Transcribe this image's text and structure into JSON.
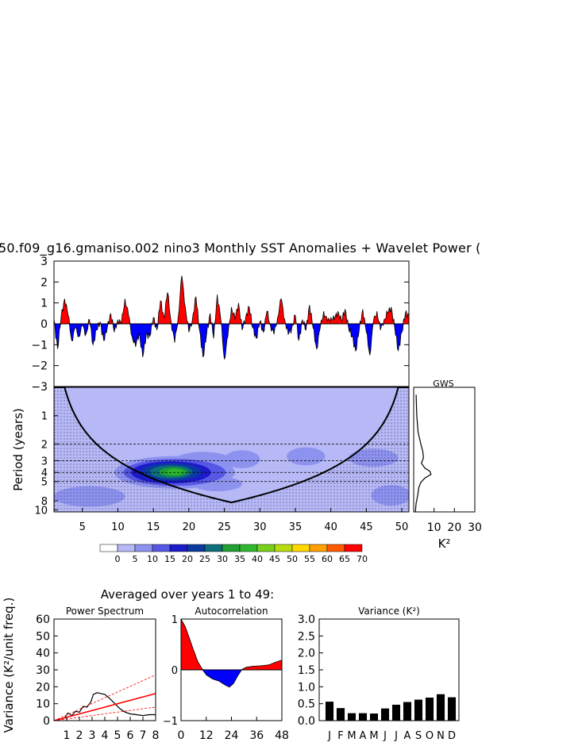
{
  "main_title": "50.f09_g16.gmaniso.002 nino3 Monthly SST Anomalies + Wavelet Power (",
  "colorbar": {
    "labels": [
      "0",
      "5",
      "10",
      "15",
      "20",
      "25",
      "30",
      "35",
      "40",
      "45",
      "50",
      "55",
      "60",
      "65",
      "70"
    ],
    "colors": [
      "#ffffff",
      "#b6b9f5",
      "#8e92ef",
      "#5757e6",
      "#1b1bc9",
      "#0b3aa0",
      "#0e6e7a",
      "#20a033",
      "#2fb82f",
      "#79cf1c",
      "#b7dc0f",
      "#ffd800",
      "#ff9f00",
      "#ff5a00",
      "#ff0000"
    ]
  },
  "gws": {
    "title": "GWS",
    "xlabel": "K²",
    "xticks": [
      "10",
      "20",
      "30"
    ]
  },
  "averaged_title": "Averaged over years 1 to 49:",
  "chart_data": [
    {
      "type": "area",
      "name": "sst-anomalies",
      "title": "",
      "ylim": [
        -3,
        3
      ],
      "yticks": [
        "3",
        "2",
        "1",
        "0",
        "−1",
        "−2",
        "−3"
      ],
      "x_range": [
        1,
        51
      ],
      "positive_color": "#ff0000",
      "negative_color": "#0000ff",
      "anomaly_points": [
        [
          1,
          0.2
        ],
        [
          1.5,
          -1.2
        ],
        [
          2,
          0.3
        ],
        [
          2.5,
          1.2
        ],
        [
          3,
          0.4
        ],
        [
          3.5,
          -0.8
        ],
        [
          4,
          -0.2
        ],
        [
          4.5,
          -0.6
        ],
        [
          5,
          -0.1
        ],
        [
          5.5,
          -0.5
        ],
        [
          6,
          0.2
        ],
        [
          6.5,
          -1.0
        ],
        [
          7,
          -0.3
        ],
        [
          7.5,
          0.1
        ],
        [
          8,
          -0.8
        ],
        [
          8.5,
          -0.2
        ],
        [
          9,
          0.5
        ],
        [
          9.5,
          -0.4
        ],
        [
          10,
          0.2
        ],
        [
          10.5,
          0.0
        ],
        [
          11,
          1.2
        ],
        [
          11.5,
          0.4
        ],
        [
          12,
          -0.6
        ],
        [
          12.5,
          -1.1
        ],
        [
          13,
          -0.4
        ],
        [
          13.5,
          -1.6
        ],
        [
          14,
          -0.5
        ],
        [
          14.5,
          -0.6
        ],
        [
          15,
          0.3
        ],
        [
          15.5,
          -0.3
        ],
        [
          16,
          1.1
        ],
        [
          16.5,
          0.3
        ],
        [
          17,
          1.5
        ],
        [
          17.5,
          0.1
        ],
        [
          18,
          -0.9
        ],
        [
          18.5,
          0.3
        ],
        [
          19,
          2.3
        ],
        [
          19.5,
          0.8
        ],
        [
          20,
          -0.4
        ],
        [
          20.5,
          0.2
        ],
        [
          21,
          1.3
        ],
        [
          21.5,
          -0.3
        ],
        [
          22,
          -1.6
        ],
        [
          22.5,
          -0.5
        ],
        [
          23,
          0.5
        ],
        [
          23.5,
          -0.7
        ],
        [
          24,
          1.4
        ],
        [
          24.5,
          0.2
        ],
        [
          25,
          -1.7
        ],
        [
          25.5,
          -0.6
        ],
        [
          26,
          0.8
        ],
        [
          26.5,
          0.2
        ],
        [
          27,
          1.0
        ],
        [
          27.5,
          -0.3
        ],
        [
          28,
          0.3
        ],
        [
          28.5,
          0.8
        ],
        [
          29,
          -0.2
        ],
        [
          29.5,
          -0.7
        ],
        [
          30,
          0.1
        ],
        [
          30.5,
          -0.4
        ],
        [
          31,
          0.6
        ],
        [
          31.5,
          -0.1
        ],
        [
          32,
          -0.5
        ],
        [
          32.5,
          0.3
        ],
        [
          33,
          1.2
        ],
        [
          33.5,
          0.2
        ],
        [
          34,
          -0.5
        ],
        [
          34.5,
          -0.2
        ],
        [
          35,
          0.4
        ],
        [
          35.5,
          -0.8
        ],
        [
          36,
          0.2
        ],
        [
          36.5,
          -0.3
        ],
        [
          37,
          0.9
        ],
        [
          37.5,
          -0.2
        ],
        [
          38,
          -1.2
        ],
        [
          38.5,
          -0.2
        ],
        [
          39,
          0.6
        ],
        [
          39.5,
          0.1
        ],
        [
          40,
          0.3
        ],
        [
          40.5,
          0.2
        ],
        [
          41,
          0.6
        ],
        [
          41.5,
          0.1
        ],
        [
          42,
          0.7
        ],
        [
          42.5,
          -0.2
        ],
        [
          43,
          -0.6
        ],
        [
          43.5,
          -1.3
        ],
        [
          44,
          -0.3
        ],
        [
          44.5,
          0.7
        ],
        [
          45,
          -0.4
        ],
        [
          45.5,
          -1.5
        ],
        [
          46,
          0.1
        ],
        [
          46.5,
          0.6
        ],
        [
          47,
          -0.3
        ],
        [
          47.5,
          0.2
        ],
        [
          48,
          0.5
        ],
        [
          48.5,
          0.8
        ],
        [
          49,
          -0.2
        ],
        [
          49.5,
          -1.3
        ],
        [
          50,
          -0.4
        ],
        [
          50.5,
          0.5
        ],
        [
          51,
          0.4
        ]
      ]
    },
    {
      "type": "heatmap",
      "name": "wavelet-power",
      "ylabel": "Period (years)",
      "yticks": [
        {
          "value": 1,
          "label": "1"
        },
        {
          "value": 2,
          "label": "2"
        },
        {
          "value": 3,
          "label": "3"
        },
        {
          "value": 4,
          "label": "4"
        },
        {
          "value": 5,
          "label": "5"
        },
        {
          "value": 8,
          "label": "8"
        },
        {
          "value": 10,
          "label": "10"
        }
      ],
      "xticks": [
        {
          "value": 5,
          "label": "5"
        },
        {
          "value": 10,
          "label": "10"
        },
        {
          "value": 15,
          "label": "15"
        },
        {
          "value": 20,
          "label": "20"
        },
        {
          "value": 25,
          "label": "25"
        },
        {
          "value": 30,
          "label": "30"
        },
        {
          "value": 35,
          "label": "35"
        },
        {
          "value": 40,
          "label": "40"
        },
        {
          "value": 45,
          "label": "45"
        },
        {
          "value": 50,
          "label": "50"
        }
      ],
      "x_range": [
        1,
        51
      ],
      "period_range": [
        0.5,
        10.5
      ],
      "dashed_periods": [
        2,
        3,
        4,
        5
      ]
    },
    {
      "type": "line",
      "name": "global-wavelet-spectrum",
      "title": "GWS",
      "xlim": [
        0,
        30
      ],
      "points": [
        [
          1.2,
          0.6
        ],
        [
          1.5,
          1.0
        ],
        [
          2.2,
          1.5
        ],
        [
          3.5,
          2.0
        ],
        [
          4.5,
          2.4
        ],
        [
          4.8,
          2.8
        ],
        [
          3.8,
          3.2
        ],
        [
          5.5,
          3.6
        ],
        [
          8.0,
          3.9
        ],
        [
          8.5,
          4.2
        ],
        [
          5.5,
          4.6
        ],
        [
          3.5,
          5.1
        ],
        [
          2.5,
          5.8
        ],
        [
          2.0,
          7.0
        ],
        [
          1.2,
          8.5
        ],
        [
          0.8,
          10.5
        ]
      ]
    },
    {
      "type": "line",
      "name": "power-spectrum",
      "title": "Power Spectrum",
      "ylabel": "Variance (K²/unit freq.)",
      "xticks": [
        "1",
        "2",
        "3",
        "4",
        "5",
        "6",
        "7",
        "8"
      ],
      "yticks": [
        "0",
        "10",
        "20",
        "30",
        "40",
        "50",
        "60"
      ],
      "xlim": [
        0,
        8
      ],
      "ylim": [
        0,
        60
      ],
      "series": [
        {
          "color": "#000000",
          "points": [
            [
              0.3,
              0.5
            ],
            [
              0.8,
              1.5
            ],
            [
              1.1,
              4.5
            ],
            [
              1.4,
              3.0
            ],
            [
              1.7,
              5.5
            ],
            [
              2.0,
              5.0
            ],
            [
              2.3,
              8.5
            ],
            [
              2.6,
              8.0
            ],
            [
              2.9,
              11.0
            ],
            [
              3.1,
              15.5
            ],
            [
              3.4,
              16.5
            ],
            [
              3.7,
              16.0
            ],
            [
              4.0,
              15.5
            ],
            [
              4.4,
              13.0
            ],
            [
              4.8,
              10.0
            ],
            [
              5.2,
              7.0
            ],
            [
              5.6,
              5.0
            ],
            [
              6.0,
              4.0
            ],
            [
              6.5,
              3.5
            ],
            [
              7.0,
              3.0
            ],
            [
              7.5,
              3.5
            ],
            [
              8.0,
              3.5
            ]
          ]
        },
        {
          "color": "#ff0000",
          "width": 1.6,
          "points": [
            [
              0,
              0
            ],
            [
              8,
              16
            ]
          ]
        },
        {
          "color": "#ff0000",
          "dash": "3,2",
          "width": 0.8,
          "points": [
            [
              0,
              0
            ],
            [
              8,
              27
            ]
          ]
        },
        {
          "color": "#ff0000",
          "dash": "3,2",
          "width": 0.8,
          "points": [
            [
              0,
              0
            ],
            [
              8,
              8
            ]
          ]
        }
      ]
    },
    {
      "type": "area",
      "name": "autocorrelation",
      "title": "Autocorrelation",
      "xticks": [
        "0",
        "12",
        "24",
        "36",
        "48"
      ],
      "yticks": [
        "1",
        "0",
        "−1"
      ],
      "xlim": [
        0,
        48
      ],
      "ylim": [
        -1,
        1
      ],
      "positive_color": "#ff0000",
      "negative_color": "#0000ff",
      "points": [
        [
          0,
          1.0
        ],
        [
          2,
          0.85
        ],
        [
          4,
          0.62
        ],
        [
          6,
          0.38
        ],
        [
          8,
          0.16
        ],
        [
          10,
          0.02
        ],
        [
          12,
          -0.1
        ],
        [
          15,
          -0.18
        ],
        [
          18,
          -0.22
        ],
        [
          21,
          -0.3
        ],
        [
          23,
          -0.34
        ],
        [
          25,
          -0.27
        ],
        [
          27,
          -0.12
        ],
        [
          29,
          0.01
        ],
        [
          31,
          0.05
        ],
        [
          34,
          0.07
        ],
        [
          38,
          0.08
        ],
        [
          42,
          0.1
        ],
        [
          45,
          0.15
        ],
        [
          48,
          0.19
        ]
      ]
    },
    {
      "type": "bar",
      "name": "variance",
      "title": "Variance (K²)",
      "categories": [
        "J",
        "F",
        "M",
        "A",
        "M",
        "J",
        "J",
        "A",
        "S",
        "O",
        "N",
        "D"
      ],
      "values": [
        0.56,
        0.37,
        0.22,
        0.22,
        0.21,
        0.36,
        0.47,
        0.55,
        0.62,
        0.68,
        0.78,
        0.69
      ],
      "yticks": [
        "0.0",
        "0.5",
        "1.0",
        "1.5",
        "2.0",
        "2.5",
        "3.0"
      ],
      "ylim": [
        0,
        3.0
      ],
      "color": "#000000"
    }
  ]
}
